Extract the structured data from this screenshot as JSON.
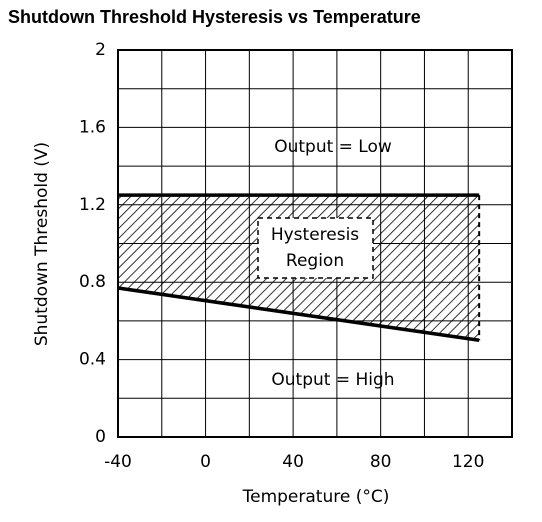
{
  "chart_data": {
    "type": "line",
    "title": "Shutdown Threshold Hysteresis vs Temperature",
    "x_label": "Temperature (°C)",
    "y_label": "Shutdown Threshold (V)",
    "x": [
      -40,
      125
    ],
    "series": [
      {
        "color": "#000000",
        "values": [
          1.25,
          1.25
        ]
      },
      {
        "color": "#000000",
        "values": [
          0.77,
          0.5
        ]
      }
    ],
    "annotations": [
      "Output = Low",
      "Hysteresis",
      "Region",
      "Output = High"
    ],
    "xlim": [
      -40,
      140
    ],
    "xticks": [
      -40,
      0,
      40,
      80,
      120
    ],
    "ylim": [
      0,
      2
    ],
    "yticks": [
      0,
      0.4,
      0.8,
      1.2,
      1.6,
      2
    ],
    "grid": true
  }
}
